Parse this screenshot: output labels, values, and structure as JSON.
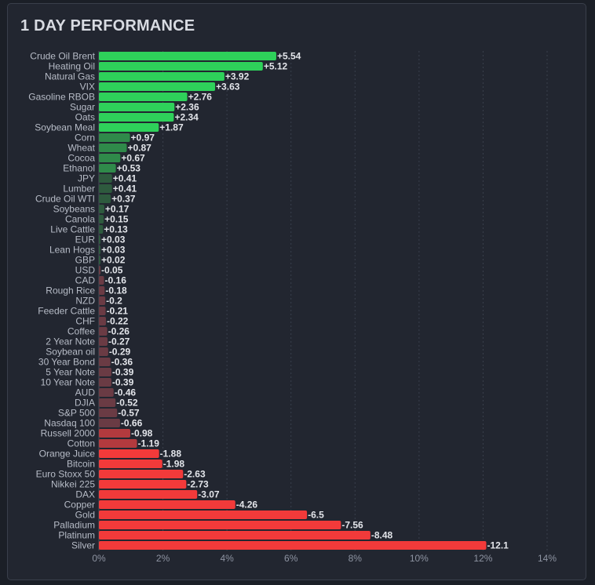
{
  "chart_data": {
    "type": "bar",
    "orientation": "horizontal",
    "title": "1 DAY PERFORMANCE",
    "xlabel": "",
    "ylabel": "",
    "xlim": [
      0,
      14
    ],
    "x_ticks": [
      "0%",
      "2%",
      "4%",
      "6%",
      "8%",
      "10%",
      "12%",
      "14%"
    ],
    "grid": "vertical dashed",
    "colors": {
      "strong_positive": "#2ed15a",
      "mild_positive": "#2f8a4a",
      "weak_positive": "#2e5a3e",
      "weak_negative": "#6a3b44",
      "mild_negative": "#b33a3e",
      "strong_negative": "#f23a3a",
      "label": "#e3e5ea",
      "category_label": "#b7bcc7",
      "grid": "#3a404c"
    },
    "categories": [
      "Crude Oil Brent",
      "Heating Oil",
      "Natural Gas",
      "VIX",
      "Gasoline RBOB",
      "Sugar",
      "Oats",
      "Soybean Meal",
      "Corn",
      "Wheat",
      "Cocoa",
      "Ethanol",
      "JPY",
      "Lumber",
      "Crude Oil WTI",
      "Soybeans",
      "Canola",
      "Live Cattle",
      "EUR",
      "Lean Hogs",
      "GBP",
      "USD",
      "CAD",
      "Rough Rice",
      "NZD",
      "Feeder Cattle",
      "CHF",
      "Coffee",
      "2 Year Note",
      "Soybean oil",
      "30 Year Bond",
      "5 Year Note",
      "10 Year Note",
      "AUD",
      "DJIA",
      "S&P 500",
      "Nasdaq 100",
      "Russell 2000",
      "Cotton",
      "Orange Juice",
      "Bitcoin",
      "Euro Stoxx 50",
      "Nikkei 225",
      "DAX",
      "Copper",
      "Gold",
      "Palladium",
      "Platinum",
      "Silver"
    ],
    "values": [
      5.54,
      5.12,
      3.92,
      3.63,
      2.76,
      2.36,
      2.34,
      1.87,
      0.97,
      0.87,
      0.67,
      0.53,
      0.41,
      0.41,
      0.37,
      0.17,
      0.15,
      0.13,
      0.03,
      0.03,
      0.02,
      -0.05,
      -0.16,
      -0.18,
      -0.2,
      -0.21,
      -0.22,
      -0.26,
      -0.27,
      -0.29,
      -0.36,
      -0.39,
      -0.39,
      -0.46,
      -0.52,
      -0.57,
      -0.66,
      -0.98,
      -1.19,
      -1.88,
      -1.98,
      -2.63,
      -2.73,
      -3.07,
      -4.26,
      -6.5,
      -7.56,
      -8.48,
      -12.1
    ],
    "value_labels": [
      "+5.54",
      "+5.12",
      "+3.92",
      "+3.63",
      "+2.76",
      "+2.36",
      "+2.34",
      "+1.87",
      "+0.97",
      "+0.87",
      "+0.67",
      "+0.53",
      "+0.41",
      "+0.41",
      "+0.37",
      "+0.17",
      "+0.15",
      "+0.13",
      "+0.03",
      "+0.03",
      "+0.02",
      "-0.05",
      "-0.16",
      "-0.18",
      "-0.2",
      "-0.21",
      "-0.22",
      "-0.26",
      "-0.27",
      "-0.29",
      "-0.36",
      "-0.39",
      "-0.39",
      "-0.46",
      "-0.52",
      "-0.57",
      "-0.66",
      "-0.98",
      "-1.19",
      "-1.88",
      "-1.98",
      "-2.63",
      "-2.73",
      "-3.07",
      "-4.26",
      "-6.5",
      "-7.56",
      "-8.48",
      "-12.1"
    ]
  }
}
